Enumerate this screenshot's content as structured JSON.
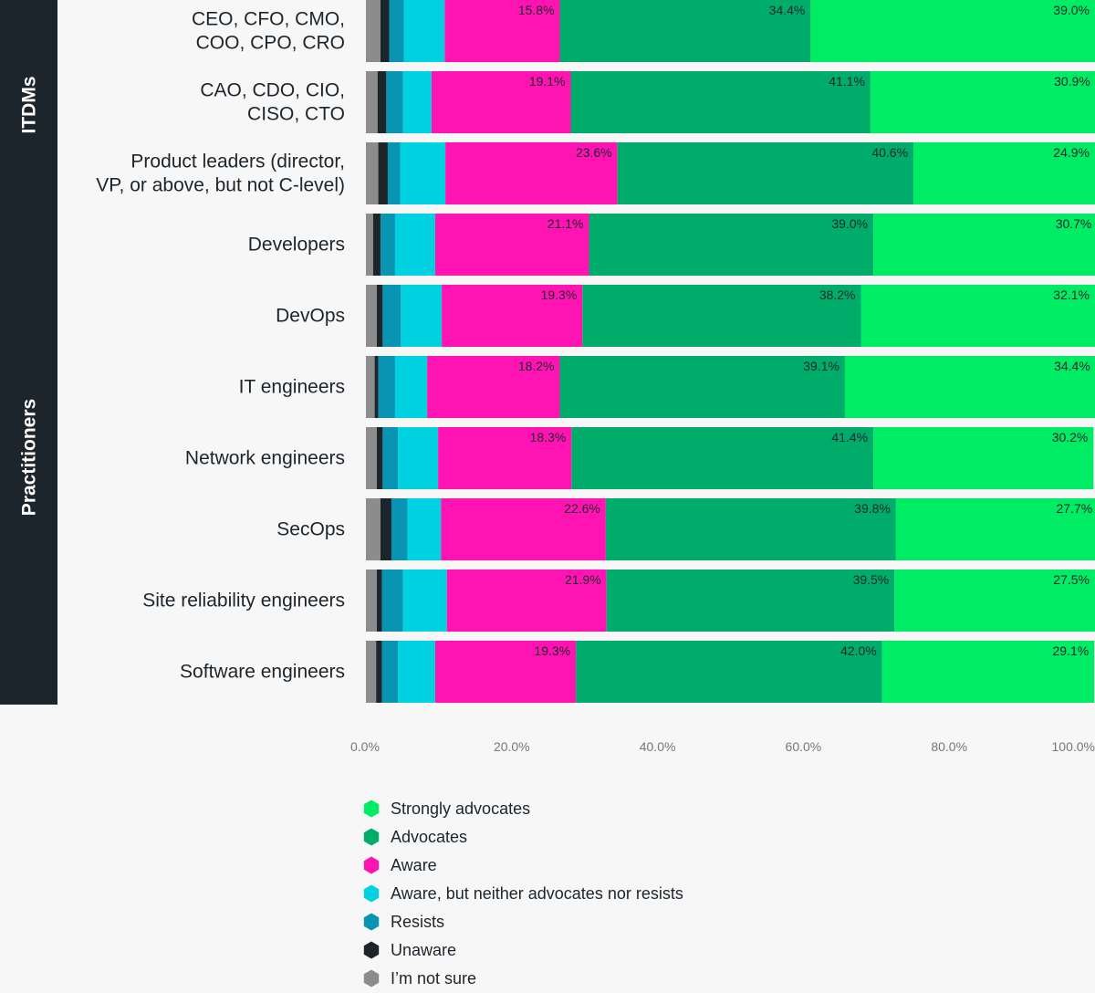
{
  "chart_data": {
    "type": "bar",
    "orientation": "horizontal",
    "stacked": true,
    "groups": [
      {
        "label": "ITDMs",
        "categories": [
          0,
          1,
          2
        ]
      },
      {
        "label": "Practitioners",
        "categories": [
          3,
          4,
          5,
          6,
          7,
          8,
          9
        ]
      }
    ],
    "categories": [
      [
        "CEO, CFO, CMO,",
        "COO, CPO, CRO"
      ],
      [
        "CAO, CDO, CIO,",
        "CISO, CTO"
      ],
      [
        "Product leaders (director,",
        "VP, or above, but not C-level)"
      ],
      [
        "Developers"
      ],
      [
        "DevOps"
      ],
      [
        "IT engineers"
      ],
      [
        "Network engineers"
      ],
      [
        "SecOps"
      ],
      [
        "Site reliability engineers"
      ],
      [
        "Software engineers"
      ]
    ],
    "series": [
      {
        "name": "I’m not sure",
        "color": "#8c8c8c",
        "values": [
          2.0,
          1.6,
          1.7,
          1.0,
          1.5,
          1.2,
          1.5,
          2.0,
          1.5,
          1.4
        ]
      },
      {
        "name": "Unaware",
        "color": "#1d252c",
        "values": [
          1.2,
          1.2,
          1.3,
          1.0,
          0.8,
          0.5,
          0.8,
          1.5,
          0.7,
          0.8
        ]
      },
      {
        "name": "Resists",
        "color": "#0894b2",
        "values": [
          2.0,
          2.3,
          1.7,
          2.0,
          2.5,
          2.3,
          2.1,
          2.2,
          2.9,
          2.2
        ]
      },
      {
        "name": "Aware, but neither advocates nor resists",
        "color": "#00d1e0",
        "values": [
          5.6,
          3.9,
          6.2,
          5.5,
          5.6,
          4.4,
          5.5,
          4.6,
          6.0,
          5.1
        ]
      },
      {
        "name": "Aware",
        "color": "#ff14b3",
        "values": [
          15.8,
          19.1,
          23.6,
          21.1,
          19.3,
          18.2,
          18.3,
          22.6,
          21.9,
          19.3
        ]
      },
      {
        "name": "Advocates",
        "color": "#00ac69",
        "values": [
          34.4,
          41.1,
          40.6,
          39.0,
          38.2,
          39.1,
          41.4,
          39.8,
          39.5,
          42.0
        ]
      },
      {
        "name": "Strongly advocates",
        "color": "#00ec64",
        "values": [
          39.0,
          30.9,
          24.9,
          30.7,
          32.1,
          34.4,
          30.2,
          27.7,
          27.5,
          29.1
        ]
      }
    ],
    "data_labels": {
      "Aware": [
        "15.8%",
        "19.1%",
        "23.6%",
        "21.1%",
        "19.3%",
        "18.2%",
        "18.3%",
        "22.6%",
        "21.9%",
        "19.3%"
      ],
      "Advocates": [
        "34.4%",
        "41.1%",
        "40.6%",
        "39.0%",
        "38.2%",
        "39.1%",
        "41.4%",
        "39.8%",
        "39.5%",
        "42.0%"
      ],
      "Strongly advocates": [
        "39.0%",
        "30.9%",
        "24.9%",
        "30.7%",
        "32.1%",
        "34.4%",
        "30.2%",
        "27.7%",
        "27.5%",
        "29.1%"
      ]
    },
    "xlim": [
      0,
      100
    ],
    "x_ticks": [
      "0.0%",
      "20.0%",
      "40.0%",
      "60.0%",
      "80.0%",
      "100.0%"
    ],
    "legend": {
      "placement": "bottom-center",
      "order": [
        "Strongly advocates",
        "Advocates",
        "Aware",
        "Aware, but neither advocates nor resists",
        "Resists",
        "Unaware",
        "I’m not sure"
      ]
    },
    "colors": {
      "group_band": "#1d252c",
      "tick_text": "#777777",
      "label_text": "#1d252c"
    }
  }
}
